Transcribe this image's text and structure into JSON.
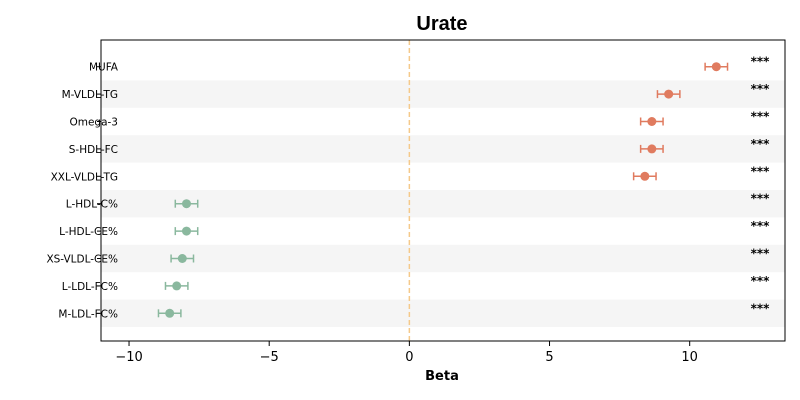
{
  "chart_data": {
    "type": "scatter",
    "title": "Urate",
    "xlabel": "Beta",
    "ylabel": "",
    "xlim": [
      -11,
      13.4
    ],
    "xticks": [
      -10,
      -5,
      0,
      5,
      10
    ],
    "xtick_labels": [
      "−10",
      "−5",
      "0",
      "5",
      "10"
    ],
    "reference_line": {
      "x": 0,
      "style": "dashed",
      "color": "#f5c98a"
    },
    "row_stripes": true,
    "positive_color": "#e07b5f",
    "negative_color": "#8ab89e",
    "points": [
      {
        "label": "MUFA",
        "beta": 10.95,
        "ci": [
          10.55,
          11.35
        ],
        "sig": "***"
      },
      {
        "label": "M-VLDL-TG",
        "beta": 9.25,
        "ci": [
          8.85,
          9.65
        ],
        "sig": "***"
      },
      {
        "label": "Omega-3",
        "beta": 8.65,
        "ci": [
          8.25,
          9.05
        ],
        "sig": "***"
      },
      {
        "label": "S-HDL-FC",
        "beta": 8.65,
        "ci": [
          8.25,
          9.05
        ],
        "sig": "***"
      },
      {
        "label": "XXL-VLDL-TG",
        "beta": 8.4,
        "ci": [
          8.0,
          8.8
        ],
        "sig": "***"
      },
      {
        "label": "L-HDL-C%",
        "beta": -7.95,
        "ci": [
          -8.35,
          -7.55
        ],
        "sig": "***"
      },
      {
        "label": "L-HDL-CE%",
        "beta": -7.95,
        "ci": [
          -8.35,
          -7.55
        ],
        "sig": "***"
      },
      {
        "label": "XS-VLDL-CE%",
        "beta": -8.1,
        "ci": [
          -8.5,
          -7.7
        ],
        "sig": "***"
      },
      {
        "label": "L-LDL-FC%",
        "beta": -8.3,
        "ci": [
          -8.7,
          -7.9
        ],
        "sig": "***"
      },
      {
        "label": "M-LDL-FC%",
        "beta": -8.55,
        "ci": [
          -8.95,
          -8.15
        ],
        "sig": "***"
      }
    ]
  }
}
